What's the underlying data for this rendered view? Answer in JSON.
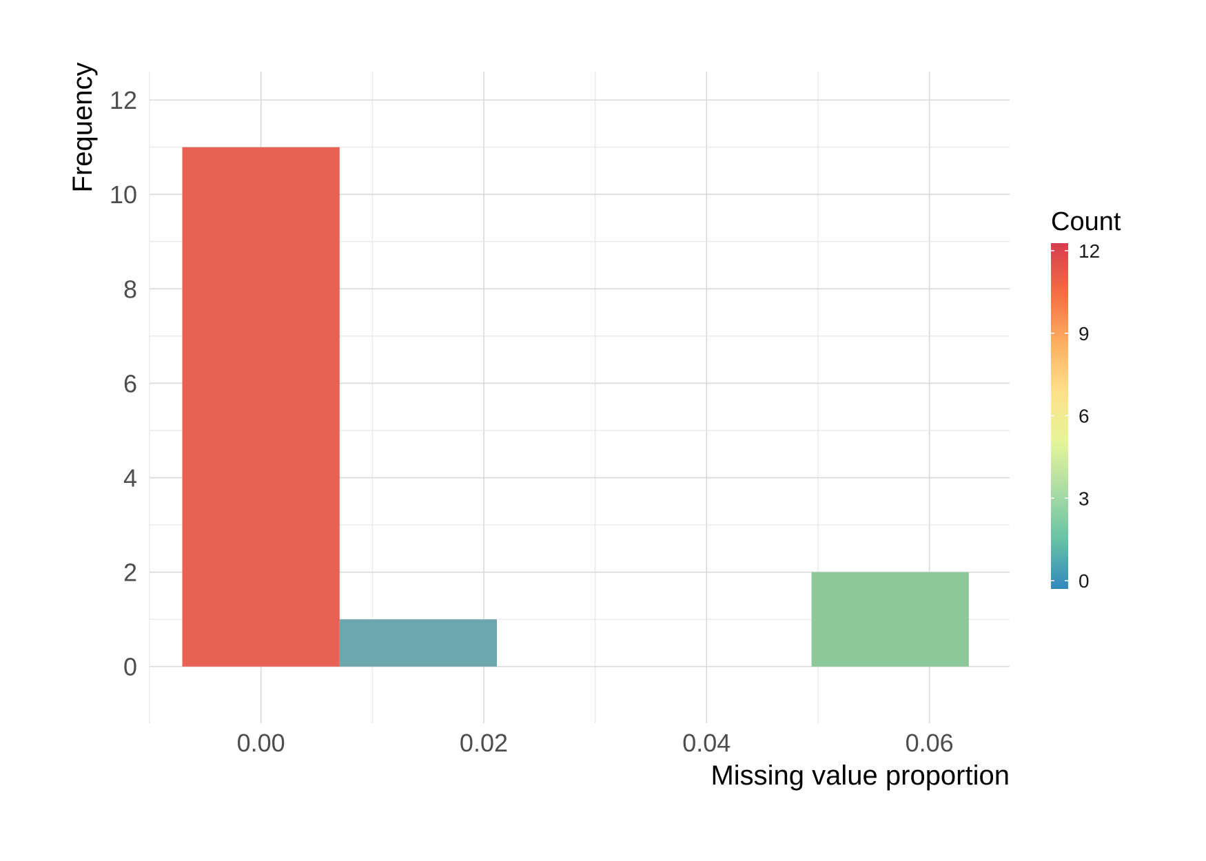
{
  "chart_data": {
    "type": "bar",
    "subtype": "histogram",
    "title": "",
    "xlabel": "Missing value proportion",
    "ylabel": "Frequency",
    "xlim": [
      -0.01,
      0.0672
    ],
    "ylim": [
      -1.2,
      12.6
    ],
    "grid": true,
    "x_ticks": [
      0.0,
      0.02,
      0.04,
      0.06
    ],
    "x_tick_labels": [
      "0.00",
      "0.02",
      "0.04",
      "0.06"
    ],
    "y_ticks": [
      0,
      2,
      4,
      6,
      8,
      10,
      12
    ],
    "y_tick_labels": [
      "0",
      "2",
      "4",
      "6",
      "8",
      "10",
      "12"
    ],
    "bins": [
      {
        "x0": -0.00706,
        "x1": 0.00706,
        "count": 11,
        "color": "#E76254"
      },
      {
        "x0": 0.00706,
        "x1": 0.02118,
        "count": 1,
        "color": "#6DA7AD"
      },
      {
        "x0": 0.04942,
        "x1": 0.06354,
        "count": 2,
        "color": "#8DC89A"
      }
    ],
    "legend": {
      "title": "Count",
      "placement": "right",
      "type": "colorbar",
      "range": [
        0,
        12
      ],
      "ticks": [
        0,
        3,
        6,
        9,
        12
      ],
      "tick_labels": [
        "0",
        "3",
        "6",
        "9",
        "12"
      ],
      "colors": [
        "#D53E4F",
        "#F46D43",
        "#FDAE61",
        "#FEE08B",
        "#E6F598",
        "#ABDDA4",
        "#66C2A5",
        "#3288BD"
      ]
    }
  }
}
